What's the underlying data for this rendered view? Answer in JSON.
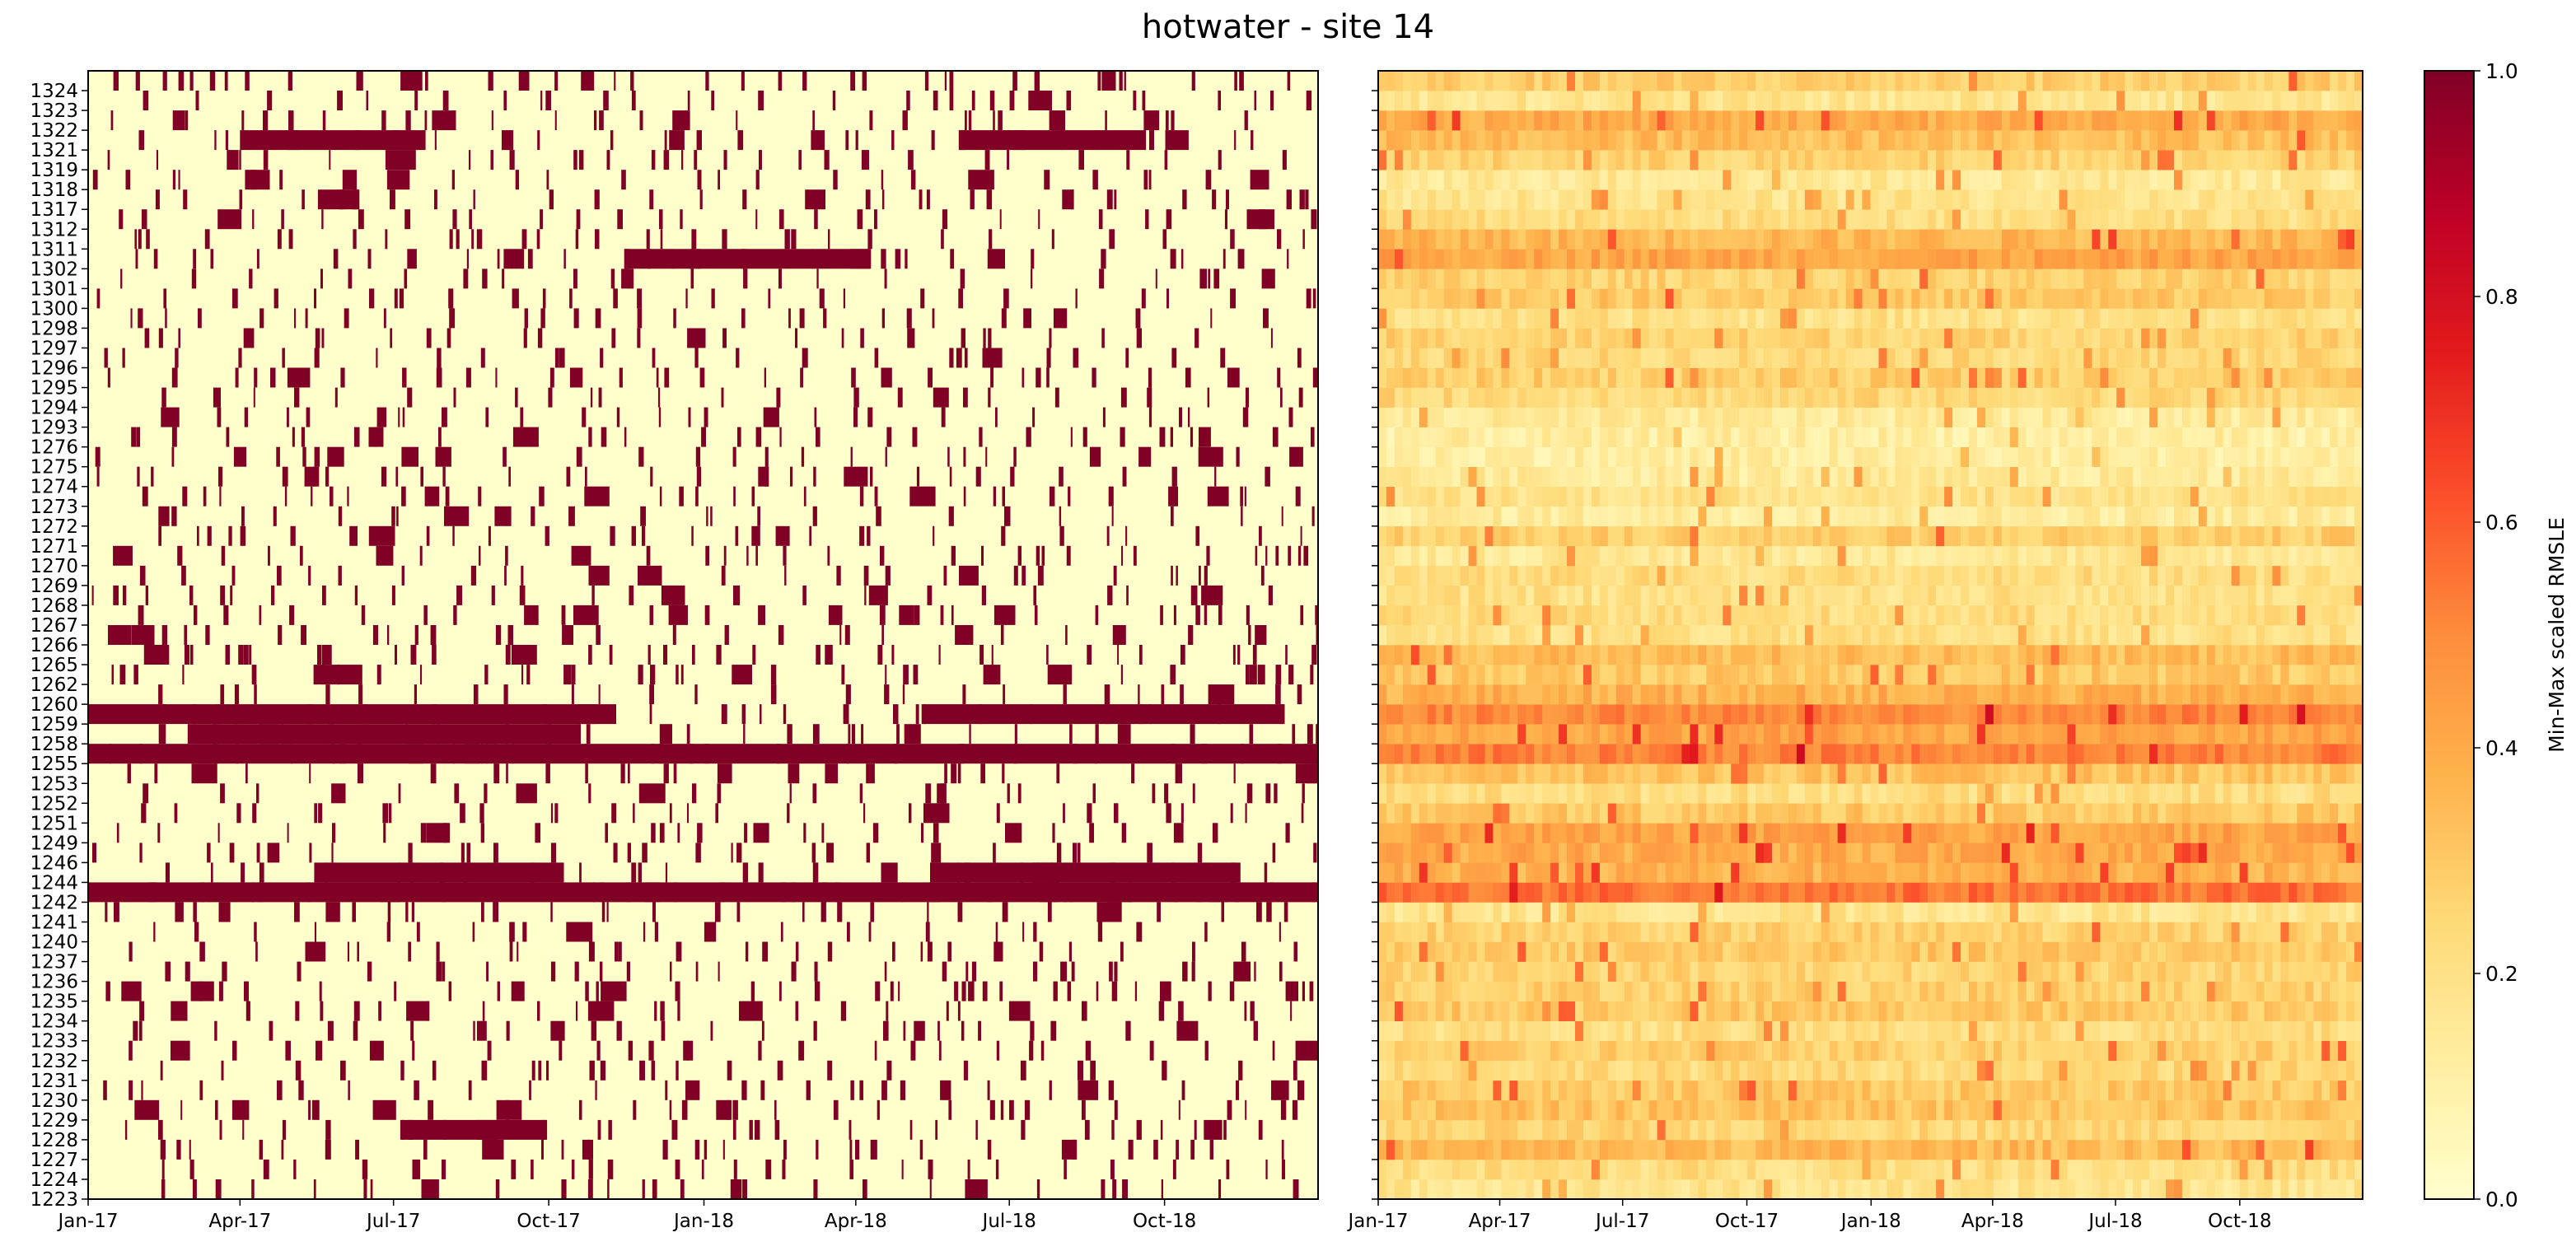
{
  "title": "hotwater - site 14",
  "chart_data": [
    {
      "type": "heatmap",
      "panel": "left",
      "binary": true,
      "x_tick_labels": [
        "Jan-17",
        "Apr-17",
        "Jul-17",
        "Oct-17",
        "Jan-18",
        "Apr-18",
        "Jul-18",
        "Oct-18"
      ],
      "x_range": [
        "2017-01-01",
        "2018-12-31"
      ],
      "y_tick_labels": [
        "1223",
        "1224",
        "1227",
        "1228",
        "1229",
        "1230",
        "1231",
        "1232",
        "1233",
        "1234",
        "1235",
        "1236",
        "1237",
        "1240",
        "1241",
        "1242",
        "1244",
        "1246",
        "1249",
        "1251",
        "1252",
        "1253",
        "1255",
        "1258",
        "1259",
        "1260",
        "1262",
        "1265",
        "1266",
        "1267",
        "1268",
        "1269",
        "1270",
        "1271",
        "1272",
        "1273",
        "1274",
        "1275",
        "1276",
        "1293",
        "1294",
        "1295",
        "1296",
        "1297",
        "1298",
        "1300",
        "1301",
        "1302",
        "1311",
        "1312",
        "1317",
        "1318",
        "1319",
        "1321",
        "1322",
        "1323",
        "1324"
      ],
      "high_value_periods": [
        {
          "row": "1258",
          "from": "2017-03-01",
          "to": "2017-10-20"
        },
        {
          "row": "1259",
          "from": "2017-01-01",
          "to": "2017-11-10"
        },
        {
          "row": "1259",
          "from": "2018-05-10",
          "to": "2018-12-10"
        },
        {
          "row": "1242",
          "from": "2017-01-01",
          "to": "2018-12-31"
        },
        {
          "row": "1244",
          "from": "2017-05-15",
          "to": "2017-10-10"
        },
        {
          "row": "1244",
          "from": "2018-05-15",
          "to": "2018-11-15"
        },
        {
          "row": "1255",
          "from": "2017-01-01",
          "to": "2018-12-31"
        },
        {
          "row": "1321",
          "from": "2017-04-01",
          "to": "2017-07-20"
        },
        {
          "row": "1321",
          "from": "2018-06-01",
          "to": "2018-09-20"
        },
        {
          "row": "1302",
          "from": "2017-11-15",
          "to": "2018-04-10"
        },
        {
          "row": "1228",
          "from": "2017-07-05",
          "to": "2017-09-30"
        }
      ]
    },
    {
      "type": "heatmap",
      "panel": "right",
      "x_tick_labels": [
        "Jan-17",
        "Apr-17",
        "Jul-17",
        "Oct-17",
        "Jan-18",
        "Apr-18",
        "Jul-18",
        "Oct-18"
      ],
      "x_range": [
        "2017-01-01",
        "2018-12-31"
      ],
      "colorbar": {
        "label": "Min-Max scaled RMSLE",
        "range": [
          0.0,
          1.0
        ],
        "ticks": [
          "0.0",
          "0.2",
          "0.4",
          "0.6",
          "0.8",
          "1.0"
        ],
        "colormap": "YlOrRd"
      },
      "row_mean_values": {
        "1223": 0.18,
        "1224": 0.22,
        "1227": 0.35,
        "1228": 0.25,
        "1229": 0.32,
        "1230": 0.3,
        "1231": 0.24,
        "1232": 0.28,
        "1233": 0.22,
        "1234": 0.3,
        "1235": 0.28,
        "1236": 0.26,
        "1237": 0.3,
        "1240": 0.27,
        "1241": 0.18,
        "1242": 0.55,
        "1244": 0.38,
        "1246": 0.4,
        "1249": 0.42,
        "1251": 0.3,
        "1252": 0.22,
        "1253": 0.32,
        "1255": 0.52,
        "1258": 0.42,
        "1259": 0.5,
        "1260": 0.38,
        "1262": 0.3,
        "1265": 0.34,
        "1266": 0.2,
        "1267": 0.22,
        "1268": 0.2,
        "1269": 0.22,
        "1270": 0.16,
        "1271": 0.28,
        "1272": 0.14,
        "1273": 0.2,
        "1274": 0.14,
        "1275": 0.12,
        "1276": 0.12,
        "1293": 0.14,
        "1294": 0.24,
        "1295": 0.28,
        "1296": 0.24,
        "1297": 0.26,
        "1298": 0.2,
        "1300": 0.3,
        "1301": 0.26,
        "1302": 0.42,
        "1311": 0.36,
        "1312": 0.22,
        "1317": 0.18,
        "1318": 0.16,
        "1319": 0.26,
        "1321": 0.34,
        "1322": 0.4,
        "1323": 0.18,
        "1324": 0.28
      }
    }
  ]
}
